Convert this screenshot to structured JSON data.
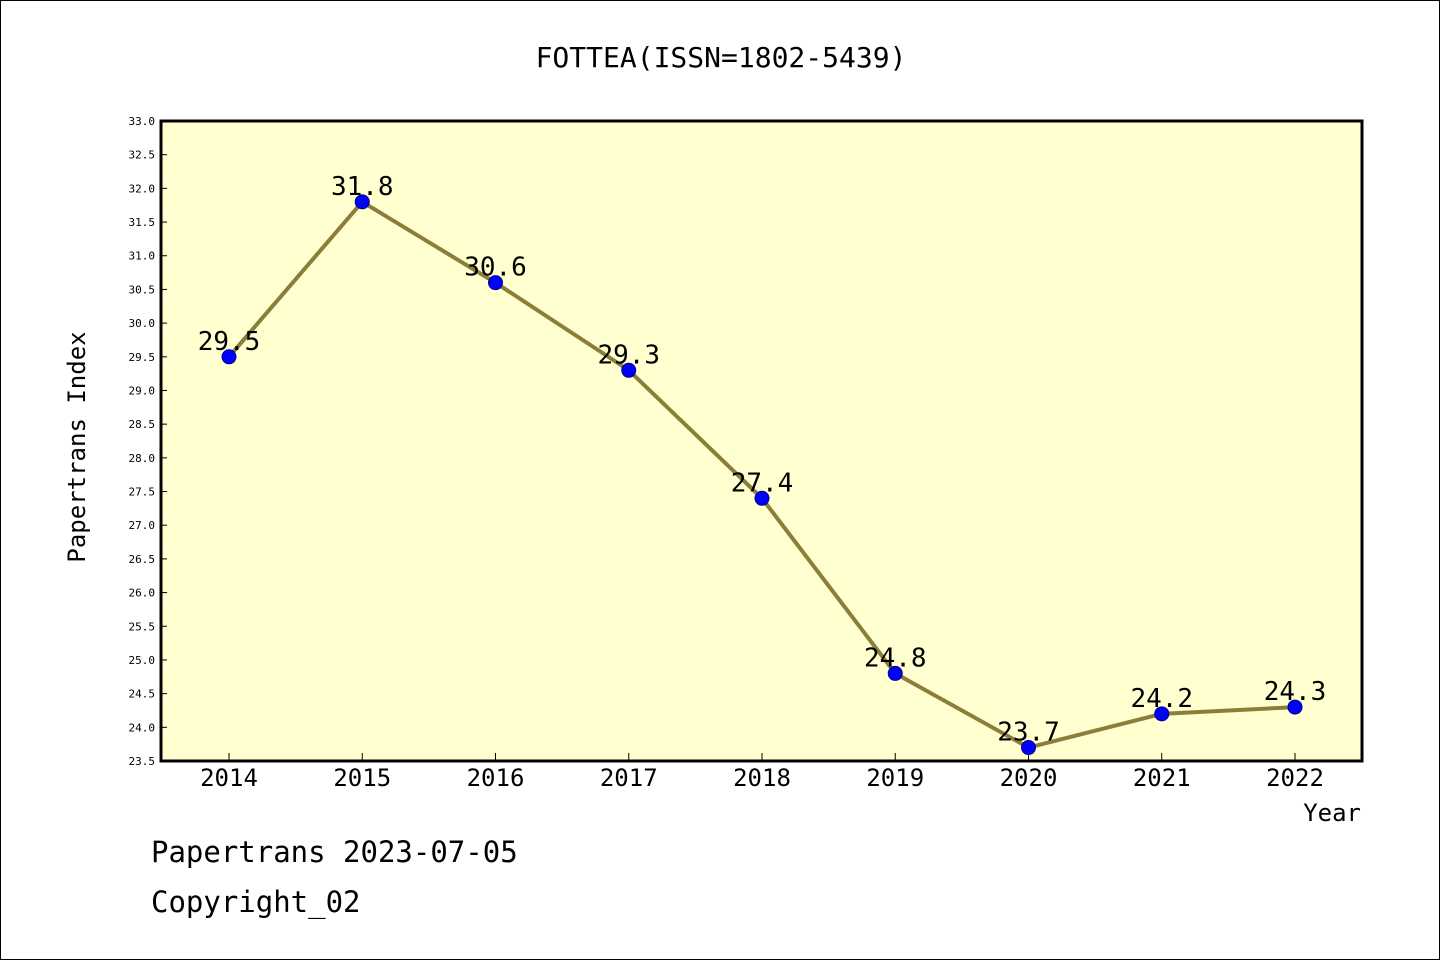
{
  "chart_data": {
    "type": "line",
    "title": "FOTTEA(ISSN=1802-5439)",
    "xlabel": "Year",
    "ylabel": "Papertrans Index",
    "categories": [
      "2014",
      "2015",
      "2016",
      "2017",
      "2018",
      "2019",
      "2020",
      "2021",
      "2022"
    ],
    "series": [
      {
        "values": [
          29.5,
          31.8,
          30.6,
          29.3,
          27.4,
          24.8,
          23.7,
          24.2,
          24.3
        ],
        "data_labels": [
          "29.5",
          "31.8",
          "30.6",
          "29.3",
          "27.4",
          "24.8",
          "23.7",
          "24.2",
          "24.3"
        ]
      }
    ],
    "ylim": [
      23.5,
      33.0
    ],
    "yticks": [
      "23.5",
      "24.0",
      "24.5",
      "25.0",
      "25.5",
      "26.0",
      "26.5",
      "27.0",
      "27.5",
      "28.0",
      "28.5",
      "29.0",
      "29.5",
      "30.0",
      "30.5",
      "31.0",
      "31.5",
      "32.0",
      "32.5",
      "33.0"
    ],
    "grid": false,
    "colors": {
      "plot_background": "#ffffd0",
      "line": "#8b7d3a",
      "marker": "#0000ff"
    }
  },
  "footer": {
    "date_line": "Papertrans 2023-07-05",
    "copyright": "Copyright_02"
  }
}
